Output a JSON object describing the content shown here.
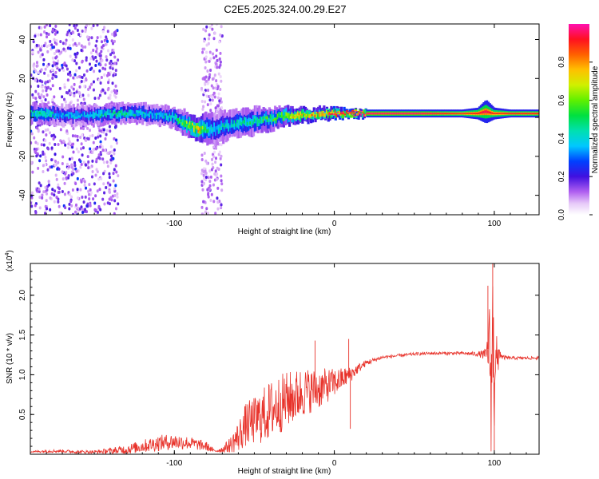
{
  "title": "C2E5.2025.324.00.29.E27",
  "chart_data": [
    {
      "type": "heatmap",
      "xlabel": "Height of straight line (km)",
      "ylabel": "Frequency (Hz)",
      "xlim": [
        -190,
        128
      ],
      "ylim": [
        -50,
        48
      ],
      "x_ticks": [
        -100,
        0,
        100
      ],
      "x_tick_labels": [
        "-100",
        "0",
        "100"
      ],
      "y_ticks": [
        -40,
        -20,
        0,
        20,
        40
      ],
      "y_tick_labels": [
        "-40",
        "-20",
        "0",
        "20",
        "40"
      ],
      "colorbar": {
        "label": "Normalized spectral amplitude",
        "range": [
          0.0,
          1.0
        ],
        "ticks": [
          0.0,
          0.2,
          0.4,
          0.6,
          0.8
        ],
        "tick_labels": [
          "0.0",
          "0.2",
          "0.4",
          "0.6",
          "0.8"
        ]
      },
      "ridge": {
        "x": [
          -190,
          -180,
          -170,
          -160,
          -150,
          -140,
          -130,
          -120,
          -110,
          -100,
          -95,
          -90,
          -85,
          -80,
          -75,
          -70,
          -65,
          -60,
          -55,
          -50,
          -45,
          -40,
          -35,
          -30,
          -25,
          -20,
          -15,
          -10,
          -5,
          0,
          10,
          20,
          30,
          40,
          50,
          60,
          70,
          80,
          90,
          95,
          100,
          110,
          120,
          128
        ],
        "frequency": [
          2,
          2,
          1,
          1,
          1,
          2,
          2,
          2,
          1,
          0,
          -2,
          -4,
          -6,
          -6,
          -6,
          -5,
          -4,
          -3,
          -3,
          -2,
          -1,
          -1,
          0,
          1,
          1,
          1,
          1,
          2,
          2,
          2,
          2,
          2,
          2,
          2,
          2,
          2,
          2,
          2,
          2,
          3,
          2,
          2,
          2,
          2
        ],
        "amplitude": [
          0.45,
          0.45,
          0.35,
          0.35,
          0.4,
          0.45,
          0.45,
          0.4,
          0.4,
          0.45,
          0.5,
          0.65,
          0.75,
          0.5,
          0.4,
          0.4,
          0.4,
          0.45,
          0.45,
          0.45,
          0.5,
          0.5,
          0.55,
          0.65,
          0.7,
          0.75,
          0.75,
          0.8,
          0.85,
          0.9,
          0.95,
          0.97,
          0.97,
          0.97,
          0.97,
          0.95,
          0.92,
          0.9,
          0.92,
          0.95,
          0.9,
          0.92,
          0.92,
          0.92
        ],
        "spread_hz": [
          5,
          5,
          5,
          5,
          5,
          5,
          5,
          5,
          5,
          5,
          6,
          6,
          6,
          8,
          8,
          8,
          7,
          7,
          7,
          7,
          6,
          6,
          5,
          5,
          4,
          4,
          3,
          3,
          3,
          3,
          2,
          2,
          2,
          2,
          2,
          2,
          2,
          2,
          3,
          6,
          3,
          2,
          2,
          2
        ]
      },
      "noise_bands": [
        {
          "x_range": [
            -190,
            -135
          ],
          "frequency_range": [
            -50,
            48
          ],
          "amplitude": 0.15
        },
        {
          "x_range": [
            -83,
            -70
          ],
          "frequency_range": [
            -50,
            48
          ],
          "amplitude": 0.1
        }
      ]
    },
    {
      "type": "line",
      "xlabel": "Height of straight line (km)",
      "ylabel": "SNR (10 * v/v)",
      "y_scale_label": "(x10",
      "y_scale_exponent": "4",
      "xlim": [
        -190,
        128
      ],
      "ylim": [
        0,
        2.4
      ],
      "x_ticks": [
        -100,
        0,
        100
      ],
      "x_tick_labels": [
        "-100",
        "0",
        "100"
      ],
      "y_ticks": [
        0.5,
        1.0,
        1.5,
        2.0
      ],
      "y_tick_labels": [
        "0.5",
        "1.0",
        "1.5",
        "2.0"
      ],
      "series": [
        {
          "name": "SNR",
          "color": "#e8332b",
          "x": [
            -190,
            -180,
            -170,
            -160,
            -150,
            -140,
            -130,
            -120,
            -110,
            -100,
            -90,
            -80,
            -75,
            -70,
            -65,
            -60,
            -55,
            -50,
            -45,
            -40,
            -35,
            -30,
            -25,
            -20,
            -15,
            -10,
            -5,
            0,
            5,
            10,
            15,
            20,
            30,
            40,
            50,
            60,
            70,
            80,
            90,
            95,
            97,
            98,
            99,
            100,
            101,
            102,
            103,
            105,
            110,
            120,
            128
          ],
          "y": [
            0.03,
            0.04,
            0.04,
            0.03,
            0.03,
            0.04,
            0.06,
            0.1,
            0.14,
            0.16,
            0.14,
            0.1,
            0.04,
            0.06,
            0.12,
            0.22,
            0.38,
            0.42,
            0.48,
            0.55,
            0.62,
            0.68,
            0.72,
            0.78,
            0.8,
            0.82,
            0.86,
            0.9,
            0.95,
            1.0,
            1.08,
            1.15,
            1.22,
            1.24,
            1.26,
            1.27,
            1.27,
            1.27,
            1.26,
            1.25,
            1.4,
            0.8,
            1.6,
            0.9,
            1.5,
            1.0,
            1.3,
            1.22,
            1.21,
            1.21,
            1.21
          ],
          "noise_amp": [
            0.01,
            0.02,
            0.02,
            0.02,
            0.02,
            0.04,
            0.06,
            0.08,
            0.1,
            0.1,
            0.08,
            0.06,
            0.02,
            0.04,
            0.1,
            0.2,
            0.28,
            0.3,
            0.35,
            0.38,
            0.38,
            0.36,
            0.34,
            0.32,
            0.28,
            0.26,
            0.22,
            0.18,
            0.14,
            0.1,
            0.06,
            0.04,
            0.02,
            0.02,
            0.02,
            0.02,
            0.02,
            0.02,
            0.03,
            0.08,
            0.5,
            0.8,
            0.8,
            0.7,
            0.5,
            0.3,
            0.1,
            0.03,
            0.02,
            0.02,
            0.02
          ]
        }
      ],
      "spikes": [
        {
          "x": -12,
          "y": 1.43
        },
        {
          "x": 9,
          "y": 1.45
        },
        {
          "x": 10,
          "y": 0.32
        },
        {
          "x": 96,
          "y": 2.12
        },
        {
          "x": 99,
          "y": 2.4
        },
        {
          "x": 100,
          "y": 0.05
        }
      ]
    }
  ]
}
